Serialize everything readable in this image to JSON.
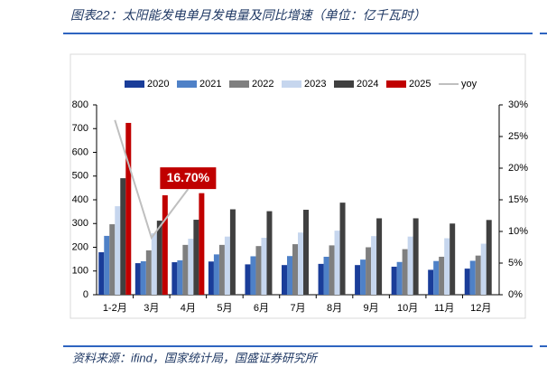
{
  "chart_data": {
    "type": "bar",
    "title": "图表22：太阳能发电单月发电量及同比增速（单位：亿千瓦时）",
    "source": "资料来源：ifind，国家统计局，国盛证券研究所",
    "categories": [
      "1-2月",
      "3月",
      "4月",
      "5月",
      "6月",
      "7月",
      "8月",
      "9月",
      "10月",
      "11月",
      "12月"
    ],
    "series": [
      {
        "name": "2020",
        "type": "bar",
        "color": "#1a3d99",
        "values": [
          179,
          133,
          137,
          140,
          128,
          125,
          130,
          125,
          118,
          105,
          110
        ]
      },
      {
        "name": "2021",
        "type": "bar",
        "color": "#4f81c7",
        "values": [
          248,
          141,
          145,
          170,
          162,
          163,
          160,
          148,
          138,
          142,
          143
        ]
      },
      {
        "name": "2022",
        "type": "bar",
        "color": "#7f7f7f",
        "values": [
          297,
          187,
          210,
          210,
          205,
          213,
          208,
          200,
          192,
          160,
          165
        ]
      },
      {
        "name": "2023",
        "type": "bar",
        "color": "#c6d6ee",
        "values": [
          373,
          259,
          236,
          245,
          240,
          262,
          270,
          247,
          245,
          238,
          215
        ]
      },
      {
        "name": "2024",
        "type": "bar",
        "color": "#404040",
        "values": [
          491,
          312,
          316,
          360,
          352,
          358,
          388,
          322,
          322,
          300,
          315
        ]
      },
      {
        "name": "2025",
        "type": "bar",
        "color": "#c00000",
        "values": [
          724,
          419,
          428,
          null,
          null,
          null,
          null,
          null,
          null,
          null,
          null
        ]
      },
      {
        "name": "yoy",
        "type": "line",
        "axis": "y2",
        "color": "#bfbfbf",
        "values": [
          27.6,
          9.0,
          16.7,
          null,
          null,
          null,
          null,
          null,
          null,
          null,
          null
        ],
        "value_labels": [
          null,
          null,
          "16.70%",
          null,
          null,
          null,
          null,
          null,
          null,
          null,
          null
        ]
      }
    ],
    "ylim": [
      0,
      800
    ],
    "yticks": [
      0,
      100,
      200,
      300,
      400,
      500,
      600,
      700,
      800
    ],
    "y2lim": [
      0,
      30
    ],
    "y2ticks": [
      {
        "value": 0,
        "label": "0%"
      },
      {
        "value": 5,
        "label": "5%"
      },
      {
        "value": 10,
        "label": "10%"
      },
      {
        "value": 15,
        "label": "15%"
      },
      {
        "value": 20,
        "label": "20%"
      },
      {
        "value": 25,
        "label": "25%"
      },
      {
        "value": 30,
        "label": "30%"
      }
    ],
    "legend": "top"
  }
}
